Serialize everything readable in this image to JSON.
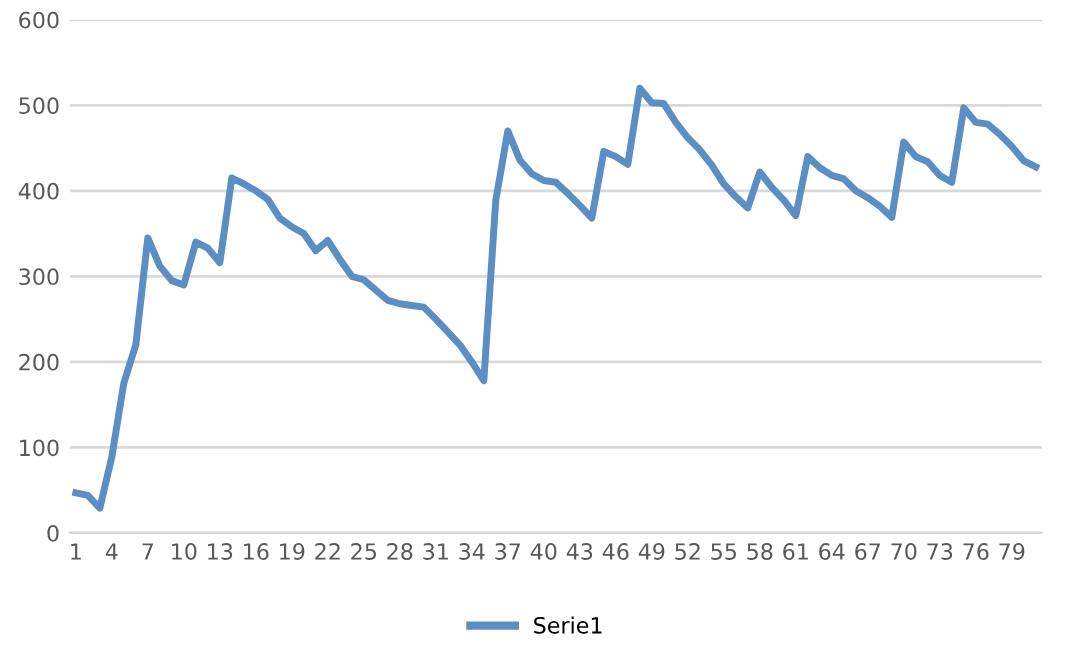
{
  "chart_data": {
    "type": "line",
    "categories": [
      "1",
      null,
      null,
      "4",
      null,
      null,
      "7",
      null,
      null,
      "10",
      null,
      null,
      "13",
      null,
      null,
      "16",
      null,
      null,
      "19",
      null,
      null,
      "22",
      null,
      null,
      "25",
      null,
      null,
      "28",
      null,
      null,
      "31",
      null,
      null,
      "34",
      null,
      null,
      "37",
      null,
      null,
      "40",
      null,
      null,
      "43",
      null,
      null,
      "46",
      null,
      null,
      "49",
      null,
      null,
      "52",
      null,
      null,
      "55",
      null,
      null,
      "58",
      null,
      null,
      "61",
      null,
      null,
      "64",
      null,
      null,
      "67",
      null,
      null,
      "70",
      null,
      null,
      "73",
      null,
      null,
      "76",
      null,
      null,
      "79",
      null,
      null
    ],
    "series": [
      {
        "name": "Serie1",
        "color": "#5b8fc4",
        "values": [
          47,
          44,
          29,
          89,
          175,
          220,
          345,
          312,
          295,
          290,
          340,
          333,
          316,
          415,
          408,
          400,
          390,
          368,
          358,
          350,
          330,
          342,
          320,
          300,
          296,
          284,
          272,
          268,
          266,
          264,
          250,
          235,
          220,
          200,
          178,
          389,
          470,
          436,
          420,
          412,
          410,
          397,
          383,
          368,
          446,
          440,
          431,
          520,
          503,
          502,
          480,
          462,
          448,
          430,
          408,
          393,
          380,
          422,
          404,
          389,
          371,
          440,
          427,
          418,
          414,
          400,
          392,
          382,
          369,
          457,
          440,
          434,
          418,
          410,
          497,
          480,
          478,
          466,
          452,
          435,
          428
        ]
      }
    ],
    "ylim": [
      0,
      600
    ],
    "yticks": [
      0,
      100,
      200,
      300,
      400,
      500,
      600
    ],
    "grid": "y",
    "legend": "bottom",
    "marker": "none",
    "line_style": "solid"
  }
}
